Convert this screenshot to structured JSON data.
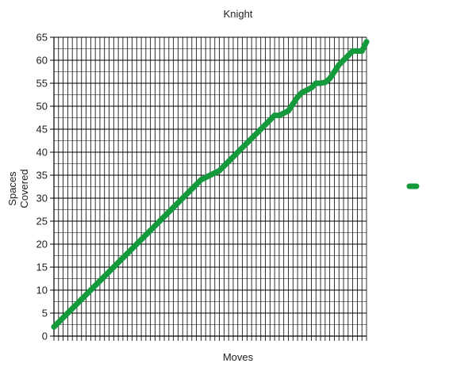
{
  "chart_data": {
    "type": "line",
    "title": "Knight",
    "xlabel": "Moves",
    "ylabel_lines": [
      "Spaces",
      "Covered"
    ],
    "ylim": [
      0,
      65
    ],
    "y_ticks": [
      0,
      5,
      10,
      15,
      20,
      25,
      30,
      35,
      40,
      45,
      50,
      55,
      60,
      65
    ],
    "xlim": [
      0,
      68
    ],
    "x_tick_labels_shown": false,
    "grid": true,
    "legend": {
      "placement": "right",
      "entries": [
        {
          "name": "",
          "color": "#149a3c"
        }
      ]
    },
    "series": [
      {
        "name": "",
        "color": "#149a3c",
        "x": [
          0,
          1,
          2,
          3,
          4,
          5,
          6,
          7,
          8,
          9,
          10,
          11,
          12,
          13,
          14,
          15,
          16,
          17,
          18,
          19,
          20,
          21,
          22,
          23,
          24,
          25,
          26,
          27,
          28,
          29,
          30,
          31,
          32,
          33,
          34,
          35,
          36,
          37,
          38,
          39,
          40,
          41,
          42,
          43,
          44,
          45,
          46,
          47,
          48,
          49,
          50,
          51,
          52,
          53,
          54,
          55,
          56,
          57,
          58,
          59,
          60,
          61,
          62,
          63,
          64,
          65,
          66,
          67,
          68
        ],
        "values": [
          2,
          3,
          4,
          5,
          6,
          7,
          8,
          9,
          10,
          11,
          12,
          13,
          14,
          15,
          16,
          17,
          18,
          19,
          20,
          21,
          22,
          23,
          24,
          25,
          26,
          27,
          28,
          29,
          30,
          31,
          32,
          33,
          34,
          34.5,
          35,
          35.5,
          36,
          37,
          38,
          39,
          40,
          41,
          42,
          43,
          44,
          45,
          46,
          47,
          48,
          48,
          48.5,
          49,
          50.5,
          52,
          53,
          53.5,
          54,
          55,
          55,
          55.2,
          56,
          57.5,
          59,
          60,
          61,
          62,
          62,
          62,
          64
        ]
      }
    ]
  }
}
